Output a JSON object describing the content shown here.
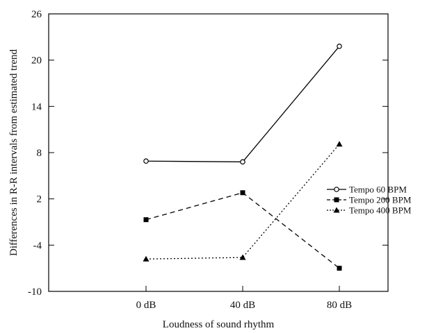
{
  "chart_data": {
    "type": "line",
    "title": "",
    "xlabel": "Loudness of sound rhythm",
    "ylabel": "Differences in R-R intervals from estimated trend",
    "categories": [
      "0 dB",
      "40 dB",
      "80 dB"
    ],
    "ylim": [
      -10,
      26
    ],
    "yticks": [
      -10,
      -4,
      2,
      8,
      14,
      20,
      26
    ],
    "grid": false,
    "legend_position": "right",
    "series": [
      {
        "name": "Tempo 60 BPM",
        "values": [
          6.9,
          6.8,
          21.8
        ],
        "marker": "open-circle",
        "dash": "solid",
        "color": "#000000"
      },
      {
        "name": "Tempo 200 BPM",
        "values": [
          -0.7,
          2.8,
          -7.0
        ],
        "marker": "filled-square",
        "dash": "dashed",
        "color": "#000000"
      },
      {
        "name": "Tempo 400 BPM",
        "values": [
          -5.8,
          -5.6,
          9.1
        ],
        "marker": "filled-triangle",
        "dash": "dotted",
        "color": "#000000"
      }
    ]
  }
}
